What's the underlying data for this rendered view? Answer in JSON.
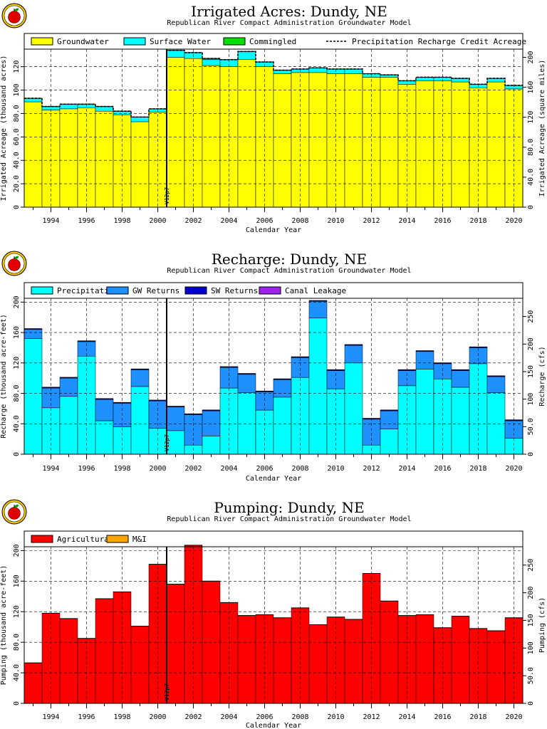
{
  "logo": {
    "icon": "apple-logo-icon"
  },
  "chart_data": [
    {
      "type": "area",
      "title": "Irrigated Acres: Dundy, NE",
      "subtitle": "Republican River Compact Administration Groundwater Model",
      "xlabel": "Calendar Year",
      "ylabel": "Irrigated Acreage (thousand acres)",
      "ylabel_right": "Irrigated Acreage (square miles)",
      "xlim": [
        1992.5,
        2020.5
      ],
      "ylim": [
        0,
        135
      ],
      "yticks": [
        "0",
        "20.0",
        "40.0",
        "60.0",
        "80.0",
        "100",
        "120"
      ],
      "yticks_right": [
        "0",
        "40.0",
        "80.0",
        "120",
        "160",
        "200"
      ],
      "ylim_right": [
        0,
        210.9
      ],
      "x_ticks": [
        "1994",
        "1996",
        "1998",
        "2000",
        "2002",
        "2004",
        "2006",
        "2008",
        "2010",
        "2012",
        "2014",
        "2016",
        "2018",
        "2020"
      ],
      "marker": {
        "x": 2000.5,
        "label": "V12p7"
      },
      "grid": true,
      "legend": {
        "placement": "top",
        "entries": [
          "Groundwater",
          "Surface Water",
          "Commingled",
          "Precipitation Recharge Credit Acreage"
        ]
      },
      "colors": [
        "#ffff00",
        "#00ffff",
        "#00e000"
      ],
      "years": [
        1993,
        1994,
        1995,
        1996,
        1997,
        1998,
        1999,
        2000,
        2001,
        2002,
        2003,
        2004,
        2005,
        2006,
        2007,
        2008,
        2009,
        2010,
        2011,
        2012,
        2013,
        2014,
        2015,
        2016,
        2017,
        2018,
        2019,
        2020
      ],
      "series": [
        {
          "name": "Groundwater",
          "values": [
            90,
            83,
            84,
            85,
            82,
            79,
            73,
            81,
            128,
            127,
            121,
            120,
            126,
            120,
            114,
            115,
            115,
            114,
            114,
            111,
            111,
            105,
            108,
            108,
            107,
            102,
            107,
            101
          ]
        },
        {
          "name": "Surface Water",
          "values": [
            3,
            3,
            4,
            3,
            4,
            3,
            4,
            3,
            6,
            5,
            5,
            6,
            7,
            4,
            3,
            3,
            4,
            4,
            4,
            3,
            2,
            3,
            3,
            3,
            3,
            3,
            3,
            3
          ]
        },
        {
          "name": "Commingled",
          "values": [
            0,
            0,
            0,
            0,
            0,
            0,
            0,
            0,
            0,
            0,
            1,
            0,
            0,
            0,
            0,
            0,
            0,
            0,
            0,
            0,
            0,
            0,
            0,
            0,
            0,
            0,
            0,
            0
          ]
        },
        {
          "name": "Precipitation Recharge Credit Acreage",
          "style": "dashed",
          "values": [
            93,
            86,
            88,
            88,
            86,
            82,
            77,
            84,
            134,
            132,
            127,
            126,
            133,
            124,
            117,
            118,
            119,
            118,
            118,
            114,
            113,
            108,
            111,
            111,
            110,
            105,
            110,
            104
          ]
        }
      ]
    },
    {
      "type": "area",
      "title": "Recharge: Dundy, NE",
      "subtitle": "Republican River Compact Administration Groundwater Model",
      "xlabel": "Calendar Year",
      "ylabel": "Recharge (thousand acre-feet)",
      "ylabel_right": "Recharge (cfs)",
      "xlim": [
        1992.5,
        2020.5
      ],
      "ylim": [
        0,
        205
      ],
      "yticks": [
        "0",
        "40.0",
        "80.0",
        "120",
        "160",
        "200"
      ],
      "yticks_right": [
        "0",
        "50.0",
        "100",
        "150",
        "200",
        "250"
      ],
      "ylim_right": [
        0,
        283.1
      ],
      "x_ticks": [
        "1994",
        "1996",
        "1998",
        "2000",
        "2002",
        "2004",
        "2006",
        "2008",
        "2010",
        "2012",
        "2014",
        "2016",
        "2018",
        "2020"
      ],
      "marker": {
        "x": 2000.5,
        "label": "V12p7"
      },
      "grid": true,
      "legend": {
        "placement": "top",
        "entries": [
          "Precipitation",
          "GW Returns",
          "SW Returns",
          "Canal Leakage"
        ]
      },
      "colors": [
        "#00ffff",
        "#1e90ff",
        "#0000d0",
        "#a020f0"
      ],
      "years": [
        1993,
        1994,
        1995,
        1996,
        1997,
        1998,
        1999,
        2000,
        2001,
        2002,
        2003,
        2004,
        2005,
        2006,
        2007,
        2008,
        2009,
        2010,
        2011,
        2012,
        2013,
        2014,
        2015,
        2016,
        2017,
        2018,
        2019,
        2020
      ],
      "series": [
        {
          "name": "Precipitation",
          "values": [
            152,
            61,
            76,
            129,
            44,
            36,
            89,
            34,
            31,
            12,
            24,
            87,
            81,
            58,
            75,
            101,
            179,
            86,
            120,
            12,
            33,
            90,
            112,
            99,
            88,
            119,
            81,
            21
          ]
        },
        {
          "name": "GW Returns",
          "values": [
            12,
            26,
            24,
            19,
            28,
            31,
            22,
            36,
            31,
            40,
            33,
            27,
            24,
            24,
            23,
            26,
            22,
            24,
            23,
            34,
            24,
            20,
            23,
            20,
            22,
            21,
            21,
            23
          ]
        },
        {
          "name": "SW Returns",
          "values": [
            1,
            1,
            1,
            1,
            1,
            1,
            1,
            1,
            1,
            1,
            1,
            1,
            1,
            1,
            1,
            1,
            1,
            1,
            1,
            1,
            1,
            1,
            1,
            1,
            1,
            1,
            1,
            1
          ]
        },
        {
          "name": "Canal Leakage",
          "values": [
            0,
            0,
            0,
            0,
            0,
            0,
            0,
            0,
            0,
            0,
            0,
            0,
            0,
            0,
            0,
            0,
            0,
            0,
            0,
            0,
            0,
            0,
            0,
            0,
            0,
            0,
            0,
            0
          ]
        }
      ]
    },
    {
      "type": "area",
      "title": "Pumping: Dundy, NE",
      "subtitle": "Republican River Compact Administration Groundwater Model",
      "xlabel": "Calendar Year",
      "ylabel": "Pumping (thousand acre-feet)",
      "ylabel_right": "Pumping (cfs)",
      "xlim": [
        1992.5,
        2020.5
      ],
      "ylim": [
        0,
        205
      ],
      "yticks": [
        "0",
        "40.0",
        "80.0",
        "120",
        "160",
        "200"
      ],
      "yticks_right": [
        "0",
        "50.0",
        "100",
        "150",
        "200",
        "250"
      ],
      "ylim_right": [
        0,
        283.1
      ],
      "x_ticks": [
        "1994",
        "1996",
        "1998",
        "2000",
        "2002",
        "2004",
        "2006",
        "2008",
        "2010",
        "2012",
        "2014",
        "2016",
        "2018",
        "2020"
      ],
      "marker": {
        "x": 2000.5,
        "label": "V12p7"
      },
      "grid": true,
      "legend": {
        "placement": "top",
        "entries": [
          "Agricultural",
          "M&I"
        ]
      },
      "colors": [
        "#ff0000",
        "#ffa500"
      ],
      "years": [
        1993,
        1994,
        1995,
        1996,
        1997,
        1998,
        1999,
        2000,
        2001,
        2002,
        2003,
        2004,
        2005,
        2006,
        2007,
        2008,
        2009,
        2010,
        2011,
        2012,
        2013,
        2014,
        2015,
        2016,
        2017,
        2018,
        2019,
        2020
      ],
      "series": [
        {
          "name": "Agricultural",
          "values": [
            53,
            118,
            111,
            85,
            137,
            146,
            101,
            182,
            156,
            207,
            160,
            132,
            115,
            116,
            112,
            125,
            103,
            113,
            110,
            170,
            134,
            115,
            116,
            99,
            114,
            98,
            95,
            112
          ]
        },
        {
          "name": "M&I",
          "values": [
            0,
            0,
            0,
            0,
            0,
            0,
            0,
            0,
            0,
            0,
            0,
            0,
            0,
            0,
            0,
            0,
            0,
            0,
            0,
            0,
            0,
            0,
            0,
            0,
            0,
            0,
            0,
            0
          ]
        }
      ]
    }
  ]
}
